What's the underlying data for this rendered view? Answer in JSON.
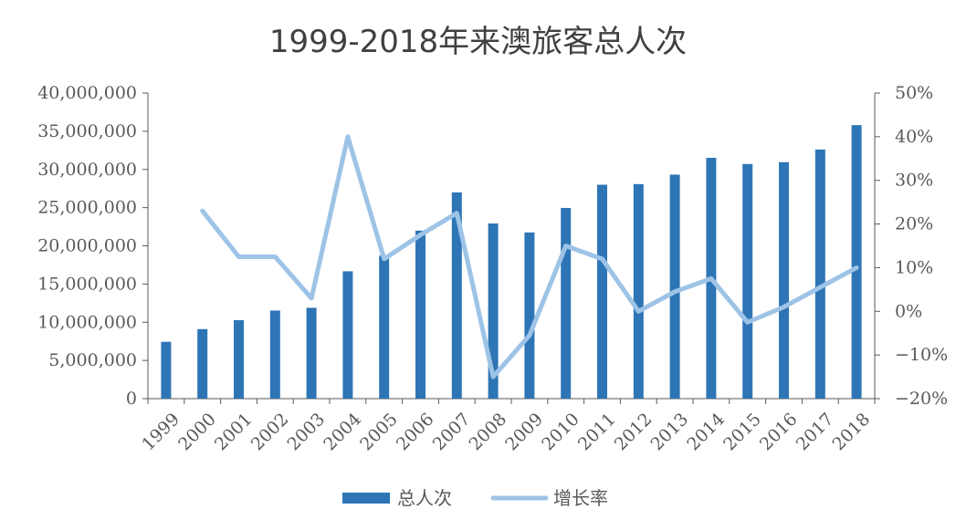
{
  "chart_data": {
    "type": "bar",
    "title": "1999-2018年来澳旅客总人次",
    "categories": [
      "1999",
      "2000",
      "2001",
      "2002",
      "2003",
      "2004",
      "2005",
      "2006",
      "2007",
      "2008",
      "2009",
      "2010",
      "2011",
      "2012",
      "2013",
      "2014",
      "2015",
      "2016",
      "2017",
      "2018"
    ],
    "series": [
      {
        "name": "总人次",
        "type": "bar",
        "axis": "left",
        "color": "#2E75B6",
        "values": [
          7440000,
          9100000,
          10280000,
          11530000,
          11890000,
          16670000,
          18710000,
          21990000,
          27000000,
          22930000,
          21750000,
          24960000,
          28000000,
          28080000,
          29320000,
          31520000,
          30710000,
          30950000,
          32610000,
          35800000
        ]
      },
      {
        "name": "增长率",
        "type": "line",
        "axis": "right",
        "color": "#9DC3E6",
        "values": [
          null,
          23,
          12.5,
          12.5,
          3,
          40,
          12,
          17.5,
          22.5,
          -15,
          -5.5,
          15,
          12,
          0,
          4.5,
          7.5,
          -2.5,
          1,
          5.5,
          10
        ]
      }
    ],
    "left_axis": {
      "min": 0,
      "max": 40000000,
      "step": 5000000,
      "tick_labels": [
        "0",
        "5,000,000",
        "10,000,000",
        "15,000,000",
        "20,000,000",
        "25,000,000",
        "30,000,000",
        "35,000,000",
        "40,000,000"
      ]
    },
    "right_axis": {
      "min": -20,
      "max": 50,
      "step": 10,
      "tick_labels": [
        "−20%",
        "−10%",
        "0%",
        "10%",
        "20%",
        "30%",
        "40%",
        "50%"
      ]
    },
    "legend": {
      "placement": "bottom",
      "items": [
        {
          "label": "总人次",
          "kind": "bar",
          "color": "#2E75B6"
        },
        {
          "label": "增长率",
          "kind": "line",
          "color": "#9DC3E6"
        }
      ]
    },
    "grid": false
  }
}
